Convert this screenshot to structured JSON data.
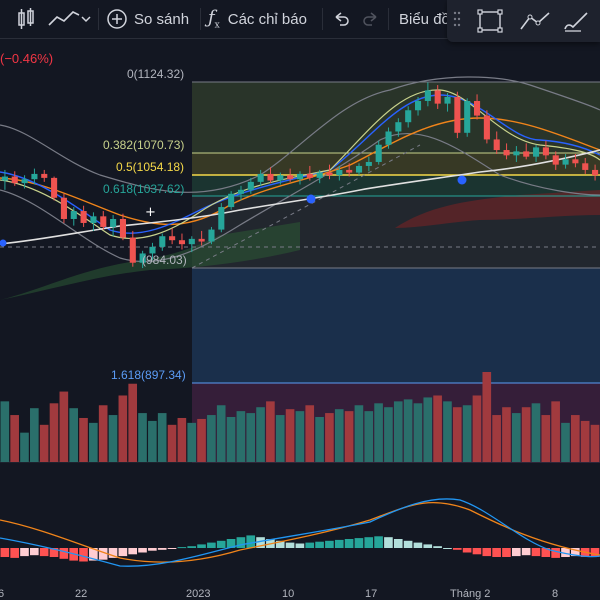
{
  "toolbar": {
    "compare_label": "So sánh",
    "indicators_label": "Các chỉ báo",
    "chart_label": "Biểu đồ",
    "icons": [
      "candles-icon",
      "line-chart-icon",
      "chevron-down-icon",
      "plus-circle-icon",
      "function-icon",
      "undo-icon",
      "redo-icon",
      "settings-icon",
      "fullscreen-icon",
      "trend-icon",
      "brush-icon"
    ]
  },
  "price_change": "(−0.46%)",
  "fib_levels": [
    {
      "label": "0(1124.32)",
      "color": "#b2b5be"
    },
    {
      "label": "0.382(1070.73)",
      "color": "#c8d28c"
    },
    {
      "label": "0.5(1054.18)",
      "color": "#f5d949"
    },
    {
      "label": "0.618(1037.62)",
      "color": "#26a69a"
    },
    {
      "label": "(984.03)",
      "color": "#b2b5be"
    },
    {
      "label": "1.618(897.34)",
      "color": "#5b9cf6"
    }
  ],
  "date_axis": [
    "6",
    "22",
    "2023",
    "10",
    "17",
    "Tháng 2",
    "8"
  ],
  "colors": {
    "up": "#26a69a",
    "down": "#ef5350",
    "background": "#131722",
    "fib_grid": "#787b86"
  },
  "chart_data": {
    "type": "candlestick",
    "candles": [
      {
        "o": 1050,
        "h": 1058,
        "l": 1043,
        "c": 1053
      },
      {
        "o": 1053,
        "h": 1057,
        "l": 1046,
        "c": 1048
      },
      {
        "o": 1048,
        "h": 1054,
        "l": 1044,
        "c": 1051
      },
      {
        "o": 1051,
        "h": 1059,
        "l": 1047,
        "c": 1055
      },
      {
        "o": 1055,
        "h": 1058,
        "l": 1049,
        "c": 1052
      },
      {
        "o": 1052,
        "h": 1053,
        "l": 1035,
        "c": 1037
      },
      {
        "o": 1037,
        "h": 1040,
        "l": 1018,
        "c": 1021
      },
      {
        "o": 1021,
        "h": 1030,
        "l": 1016,
        "c": 1027
      },
      {
        "o": 1027,
        "h": 1031,
        "l": 1015,
        "c": 1018
      },
      {
        "o": 1018,
        "h": 1026,
        "l": 1012,
        "c": 1023
      },
      {
        "o": 1023,
        "h": 1027,
        "l": 1013,
        "c": 1015
      },
      {
        "o": 1015,
        "h": 1024,
        "l": 1008,
        "c": 1021
      },
      {
        "o": 1021,
        "h": 1025,
        "l": 1005,
        "c": 1007
      },
      {
        "o": 1007,
        "h": 1012,
        "l": 985,
        "c": 988
      },
      {
        "o": 988,
        "h": 997,
        "l": 984,
        "c": 995
      },
      {
        "o": 995,
        "h": 1003,
        "l": 990,
        "c": 1000
      },
      {
        "o": 1000,
        "h": 1010,
        "l": 997,
        "c": 1008
      },
      {
        "o": 1008,
        "h": 1014,
        "l": 1002,
        "c": 1005
      },
      {
        "o": 1005,
        "h": 1010,
        "l": 998,
        "c": 1002
      },
      {
        "o": 1002,
        "h": 1008,
        "l": 996,
        "c": 1006
      },
      {
        "o": 1006,
        "h": 1012,
        "l": 1001,
        "c": 1004
      },
      {
        "o": 1004,
        "h": 1015,
        "l": 1002,
        "c": 1013
      },
      {
        "o": 1013,
        "h": 1033,
        "l": 1011,
        "c": 1030
      },
      {
        "o": 1030,
        "h": 1042,
        "l": 1028,
        "c": 1040
      },
      {
        "o": 1040,
        "h": 1046,
        "l": 1035,
        "c": 1043
      },
      {
        "o": 1043,
        "h": 1052,
        "l": 1040,
        "c": 1049
      },
      {
        "o": 1049,
        "h": 1058,
        "l": 1046,
        "c": 1055
      },
      {
        "o": 1055,
        "h": 1060,
        "l": 1048,
        "c": 1050
      },
      {
        "o": 1050,
        "h": 1056,
        "l": 1047,
        "c": 1054
      },
      {
        "o": 1054,
        "h": 1059,
        "l": 1049,
        "c": 1051
      },
      {
        "o": 1051,
        "h": 1057,
        "l": 1047,
        "c": 1055
      },
      {
        "o": 1055,
        "h": 1061,
        "l": 1050,
        "c": 1052
      },
      {
        "o": 1052,
        "h": 1058,
        "l": 1048,
        "c": 1056
      },
      {
        "o": 1056,
        "h": 1062,
        "l": 1051,
        "c": 1054
      },
      {
        "o": 1054,
        "h": 1061,
        "l": 1050,
        "c": 1058
      },
      {
        "o": 1058,
        "h": 1063,
        "l": 1053,
        "c": 1056
      },
      {
        "o": 1056,
        "h": 1063,
        "l": 1054,
        "c": 1061
      },
      {
        "o": 1061,
        "h": 1068,
        "l": 1057,
        "c": 1064
      },
      {
        "o": 1064,
        "h": 1080,
        "l": 1062,
        "c": 1077
      },
      {
        "o": 1077,
        "h": 1090,
        "l": 1074,
        "c": 1087
      },
      {
        "o": 1087,
        "h": 1097,
        "l": 1083,
        "c": 1094
      },
      {
        "o": 1094,
        "h": 1106,
        "l": 1090,
        "c": 1103
      },
      {
        "o": 1103,
        "h": 1113,
        "l": 1099,
        "c": 1110
      },
      {
        "o": 1110,
        "h": 1124,
        "l": 1106,
        "c": 1118
      },
      {
        "o": 1118,
        "h": 1122,
        "l": 1104,
        "c": 1108
      },
      {
        "o": 1108,
        "h": 1116,
        "l": 1102,
        "c": 1113
      },
      {
        "o": 1113,
        "h": 1117,
        "l": 1082,
        "c": 1086
      },
      {
        "o": 1086,
        "h": 1112,
        "l": 1083,
        "c": 1110
      },
      {
        "o": 1110,
        "h": 1115,
        "l": 1096,
        "c": 1099
      },
      {
        "o": 1099,
        "h": 1103,
        "l": 1078,
        "c": 1081
      },
      {
        "o": 1081,
        "h": 1087,
        "l": 1070,
        "c": 1073
      },
      {
        "o": 1073,
        "h": 1078,
        "l": 1066,
        "c": 1069
      },
      {
        "o": 1069,
        "h": 1076,
        "l": 1064,
        "c": 1072
      },
      {
        "o": 1072,
        "h": 1078,
        "l": 1066,
        "c": 1068
      },
      {
        "o": 1068,
        "h": 1077,
        "l": 1064,
        "c": 1075
      },
      {
        "o": 1075,
        "h": 1080,
        "l": 1066,
        "c": 1069
      },
      {
        "o": 1069,
        "h": 1072,
        "l": 1058,
        "c": 1062
      },
      {
        "o": 1062,
        "h": 1070,
        "l": 1059,
        "c": 1066
      },
      {
        "o": 1066,
        "h": 1070,
        "l": 1060,
        "c": 1063
      },
      {
        "o": 1063,
        "h": 1067,
        "l": 1055,
        "c": 1058
      },
      {
        "o": 1058,
        "h": 1062,
        "l": 1050,
        "c": 1054
      }
    ],
    "volume": [
      62,
      48,
      30,
      55,
      38,
      60,
      72,
      55,
      45,
      40,
      58,
      48,
      68,
      80,
      50,
      42,
      50,
      38,
      45,
      40,
      44,
      48,
      58,
      46,
      52,
      50,
      56,
      62,
      48,
      54,
      52,
      58,
      46,
      50,
      54,
      52,
      58,
      52,
      60,
      56,
      62,
      64,
      60,
      66,
      68,
      62,
      56,
      58,
      68,
      92,
      48,
      56,
      50,
      56,
      60,
      48,
      62,
      40,
      48,
      42,
      38
    ],
    "macd_hist": [
      -10,
      -11,
      -9,
      -8,
      -9,
      -10,
      -12,
      -14,
      -15,
      -14,
      -13,
      -11,
      -9,
      -7,
      -5,
      -3,
      -2,
      -1,
      1,
      2,
      4,
      6,
      8,
      10,
      12,
      14,
      12,
      10,
      8,
      6,
      5,
      6,
      7,
      8,
      9,
      10,
      11,
      12,
      13,
      12,
      10,
      8,
      6,
      4,
      2,
      0,
      -2,
      -5,
      -7,
      -9,
      -10,
      -10,
      -9,
      -8,
      -9,
      -10,
      -11,
      -10,
      -9,
      -10,
      -10
    ],
    "fib_levels": [
      1124.32,
      1070.73,
      1054.18,
      1037.62,
      984.03,
      897.34
    ],
    "ylim": [
      880,
      1140
    ]
  }
}
